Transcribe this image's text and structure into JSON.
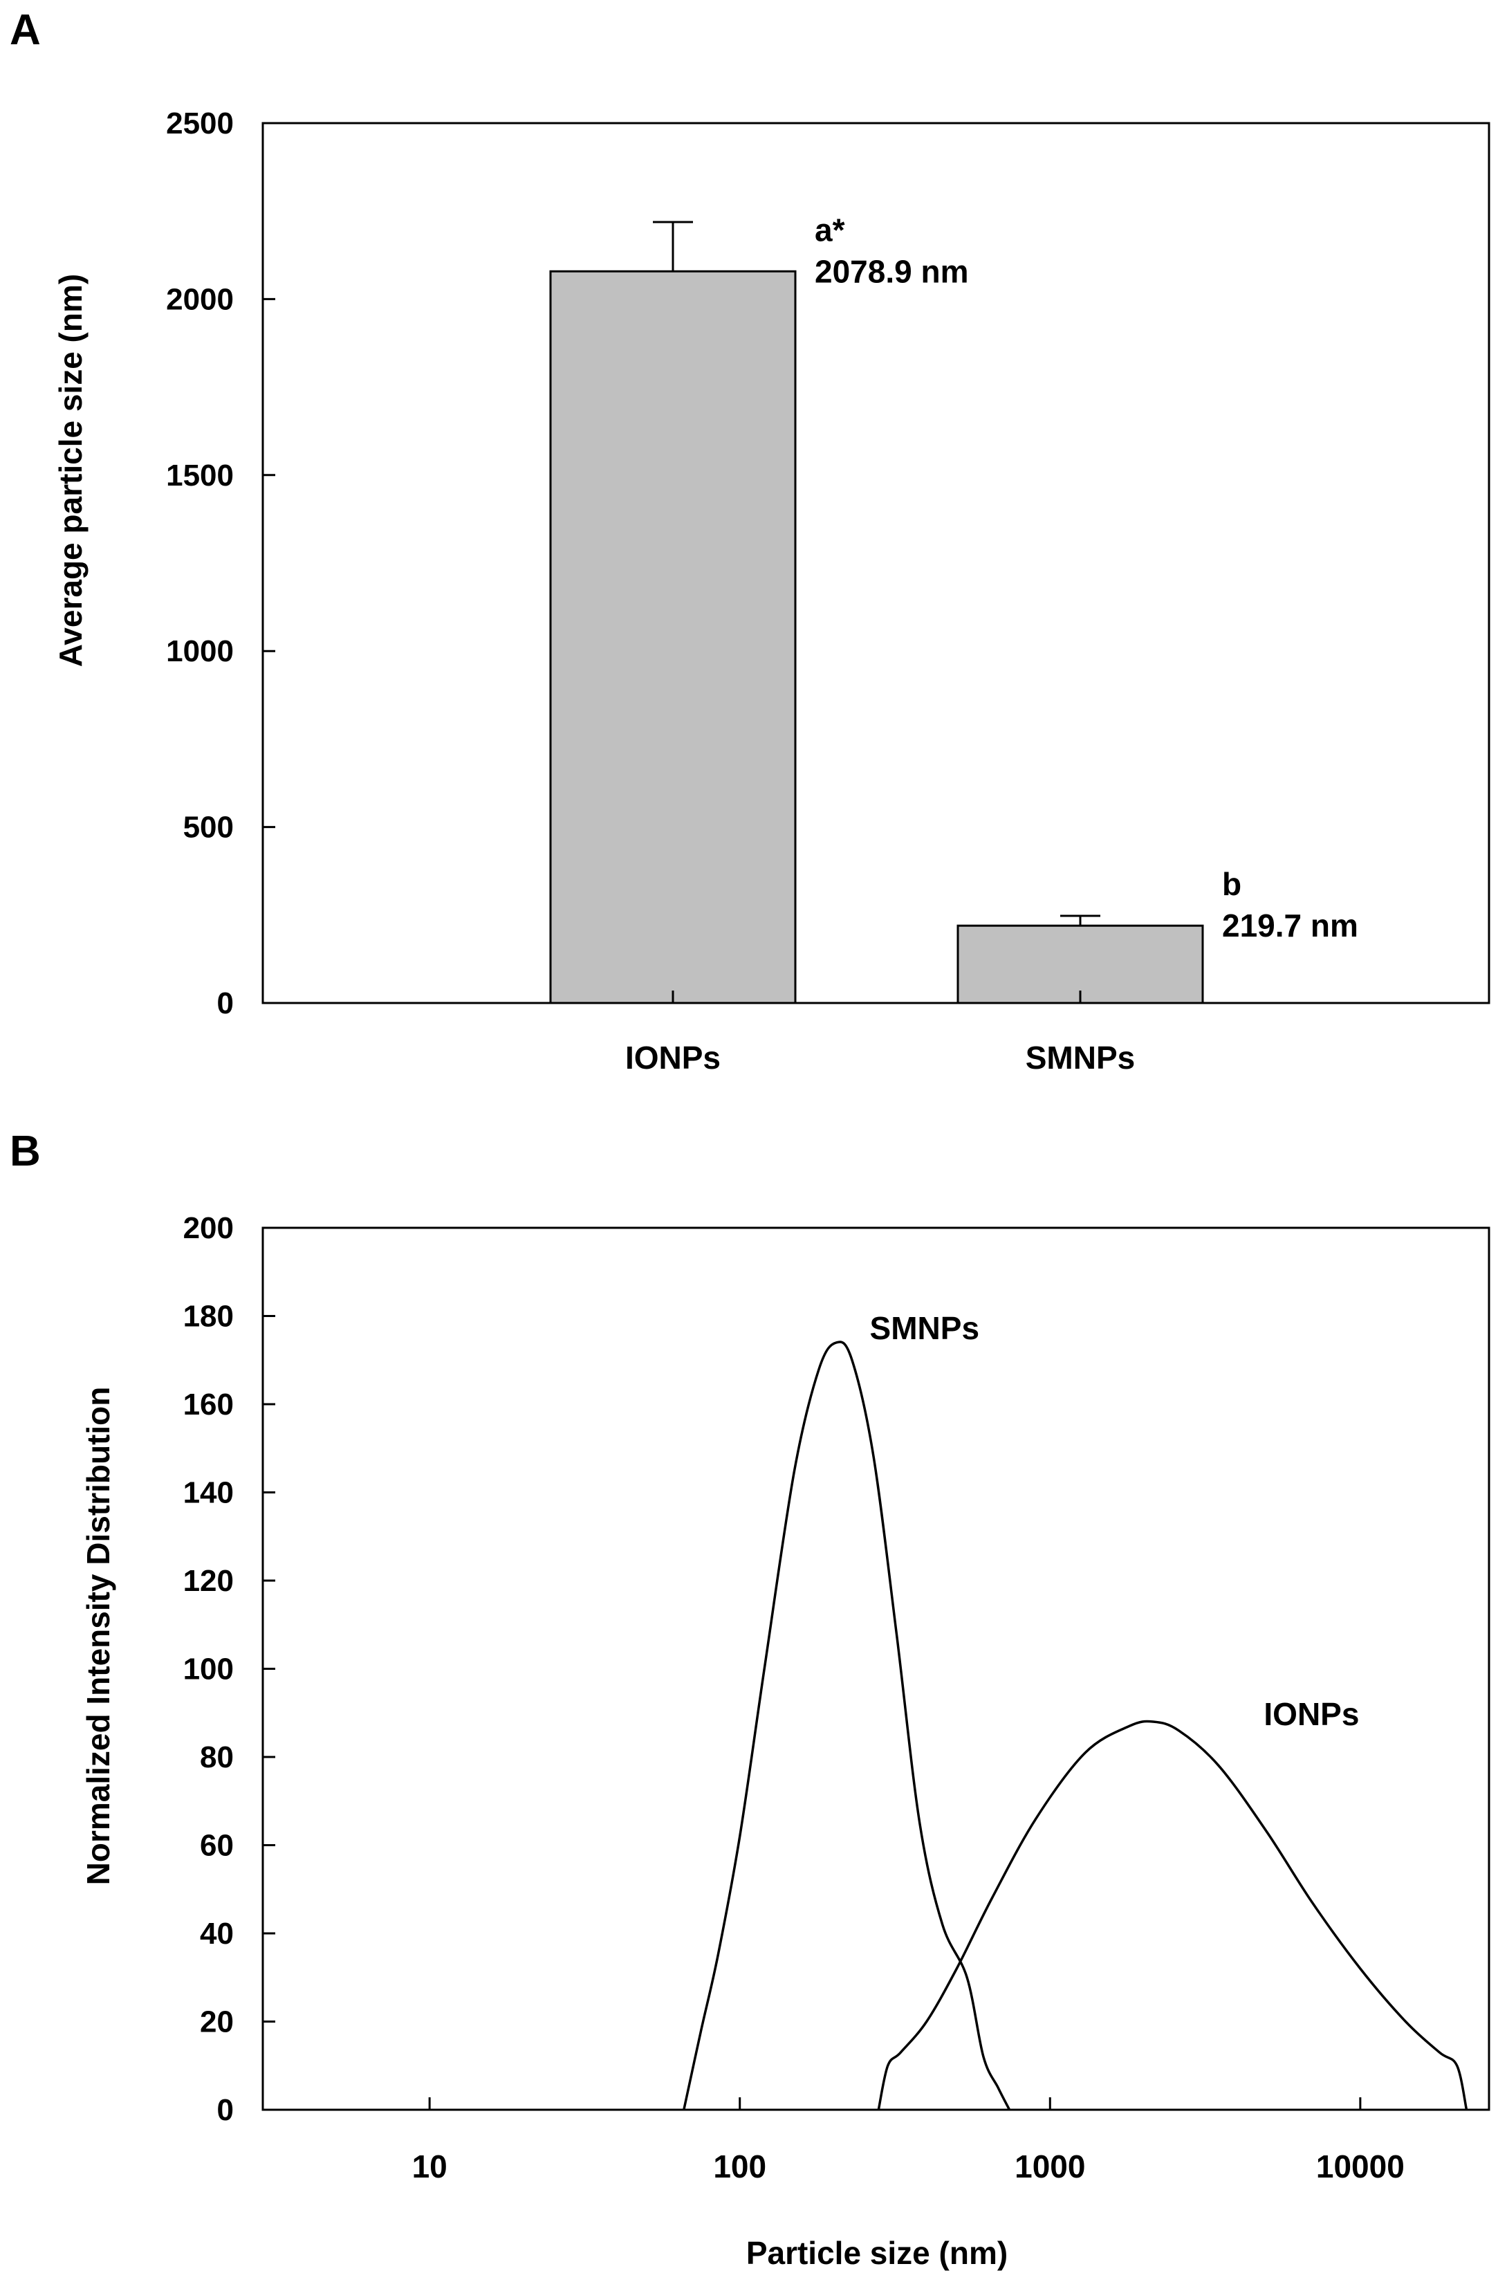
{
  "panel_labels": {
    "a": "A",
    "b": "B"
  },
  "chart_data": [
    {
      "panel": "A",
      "type": "bar",
      "title": "",
      "xlabel": "",
      "ylabel": "Average particle size (nm)",
      "ylim": [
        0,
        2500
      ],
      "yticks": [
        0,
        500,
        1000,
        1500,
        2000,
        2500
      ],
      "categories": [
        "IONPs",
        "SMNPs"
      ],
      "values": [
        2078.9,
        219.7
      ],
      "errors": [
        140,
        28
      ],
      "bar_color": "#c0c0c0",
      "annotations": [
        {
          "letter": "a*",
          "label": "2078.9 nm"
        },
        {
          "letter": "b",
          "label": "219.7 nm"
        }
      ]
    },
    {
      "panel": "B",
      "type": "line",
      "title": "",
      "xlabel": "Particle size (nm)",
      "ylabel": "Normalized Intensity Distribution",
      "xscale": "log",
      "xlim": [
        2.9,
        26000
      ],
      "xticks": [
        10,
        100,
        1000,
        10000
      ],
      "xtick_labels": [
        "10",
        "100",
        "1000",
        "10000"
      ],
      "ylim": [
        0,
        200
      ],
      "yticks": [
        0,
        20,
        40,
        60,
        80,
        100,
        120,
        140,
        160,
        180,
        200
      ],
      "series": [
        {
          "name": "SMNPs",
          "x": [
            66,
            75,
            85,
            100,
            120,
            150,
            180,
            205,
            230,
            270,
            320,
            380,
            450,
            540,
            610,
            680,
            740
          ],
          "y": [
            0,
            18,
            35,
            62,
            100,
            145,
            168,
            174,
            170,
            148,
            108,
            65,
            42,
            30,
            12,
            5,
            0
          ]
        },
        {
          "name": "IONPs",
          "x": [
            280,
            300,
            330,
            400,
            500,
            650,
            900,
            1300,
            1800,
            2150,
            2600,
            3500,
            5000,
            7000,
            10000,
            14000,
            18000,
            20500,
            22000
          ],
          "y": [
            0,
            10,
            13,
            20,
            32,
            48,
            66,
            81,
            87,
            88,
            86,
            78,
            63,
            47,
            32,
            20,
            13,
            10,
            0
          ]
        }
      ],
      "annotations": [
        {
          "label": "SMNPs"
        },
        {
          "label": "IONPs"
        }
      ]
    }
  ]
}
